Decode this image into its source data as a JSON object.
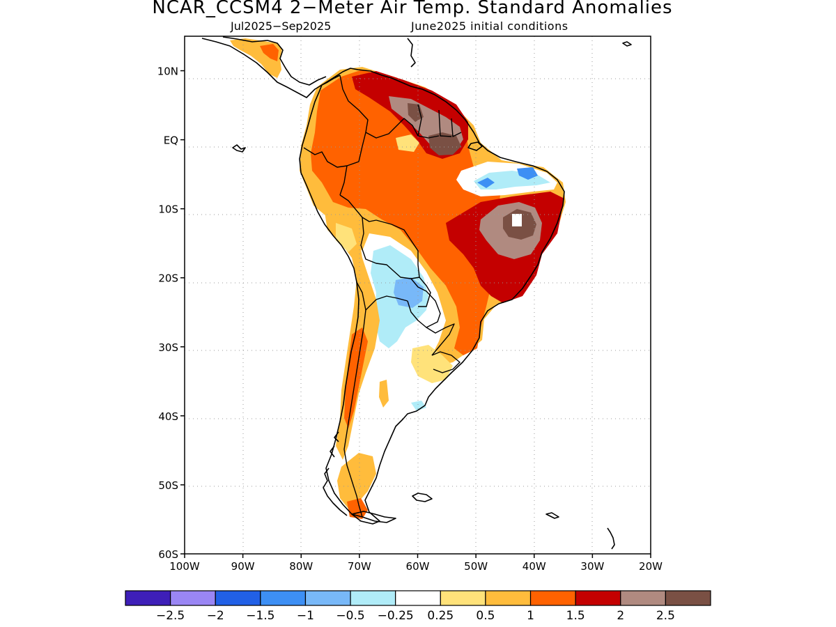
{
  "title": "NCAR_CCSM4 2−Meter Air Temp. Standard Anomalies",
  "subtitle_left": "Jul2025−Sep2025",
  "subtitle_right": "June2025 initial conditions",
  "map": {
    "projection": "lat-lon",
    "lon_range": [
      -100,
      -20
    ],
    "lat_range": [
      -60,
      15
    ],
    "coastlines": true,
    "grid": "dotted"
  },
  "lat_ticks": [
    {
      "value": 10,
      "label": "10N"
    },
    {
      "value": 0,
      "label": "EQ"
    },
    {
      "value": -10,
      "label": "10S"
    },
    {
      "value": -20,
      "label": "20S"
    },
    {
      "value": -30,
      "label": "30S"
    },
    {
      "value": -40,
      "label": "40S"
    },
    {
      "value": -50,
      "label": "50S"
    },
    {
      "value": -60,
      "label": "60S"
    }
  ],
  "lon_ticks": [
    {
      "value": -100,
      "label": "100W"
    },
    {
      "value": -90,
      "label": "90W"
    },
    {
      "value": -80,
      "label": "80W"
    },
    {
      "value": -70,
      "label": "70W"
    },
    {
      "value": -60,
      "label": "60W"
    },
    {
      "value": -50,
      "label": "50W"
    },
    {
      "value": -40,
      "label": "40W"
    },
    {
      "value": -30,
      "label": "30W"
    },
    {
      "value": -20,
      "label": "20W"
    }
  ],
  "colorbar": {
    "colors": [
      "#3e1fb8",
      "#9a86f4",
      "#2160e6",
      "#3d8ff4",
      "#78b8f8",
      "#b0ecf8",
      "#ffffff",
      "#ffe27a",
      "#ffbc3c",
      "#ff6200",
      "#c40000",
      "#b08a80",
      "#7a5044"
    ],
    "labels": [
      "−2.5",
      "−2",
      "−1.5",
      "−1",
      "−0.5",
      "−0.25",
      "0.25",
      "0.5",
      "1",
      "1.5",
      "2",
      "2.5"
    ]
  },
  "colors": {
    "pos_025": "#ffe27a",
    "pos_05": "#ffbc3c",
    "pos_1": "#ff6200",
    "pos_15": "#c40000",
    "pos_2": "#b08a80",
    "pos_25": "#7a5044",
    "neg_025": "#b0ecf8",
    "neg_05": "#78b8f8",
    "neg_1": "#3d8ff4"
  }
}
